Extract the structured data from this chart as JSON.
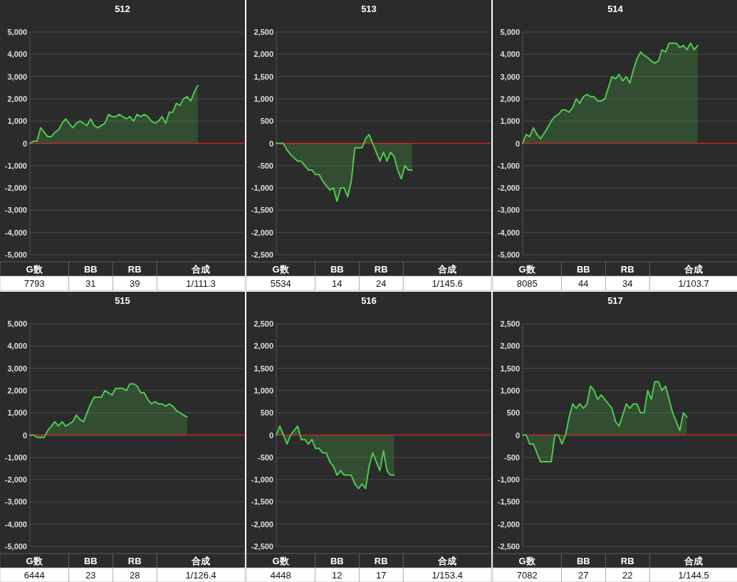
{
  "chart_data": [
    {
      "type": "area",
      "title": "512",
      "color": "#4fc94f",
      "grid": "y",
      "ylim": [
        -5000,
        5000
      ],
      "yticks": [
        {
          "value": -5000,
          "label": "-5,000"
        },
        {
          "value": -4000,
          "label": "-4,000"
        },
        {
          "value": -3000,
          "label": "-3,000"
        },
        {
          "value": -2000,
          "label": "-2,000"
        },
        {
          "value": -1000,
          "label": "-1,000"
        },
        0,
        {
          "value": 1000,
          "label": "1,000"
        },
        {
          "value": 2000,
          "label": "2,000"
        },
        {
          "value": 3000,
          "label": "3,000"
        },
        {
          "value": 4000,
          "label": "4,000"
        },
        {
          "value": 5000,
          "label": "5,000"
        }
      ],
      "categories": [
        null,
        null,
        null,
        null,
        null,
        null,
        null,
        null,
        null,
        null,
        null,
        null,
        null,
        null,
        null,
        null,
        null,
        null,
        null,
        null,
        null,
        null,
        null,
        null,
        null,
        null,
        null,
        null,
        null,
        null,
        null,
        null,
        null,
        null,
        null,
        null,
        null,
        null,
        null,
        null,
        null,
        null,
        null,
        null,
        null,
        null,
        null,
        null,
        null,
        null,
        null,
        null,
        null,
        null,
        null,
        null,
        null,
        null,
        null,
        null,
        null
      ],
      "values": [
        0,
        100,
        100,
        700,
        500,
        300,
        300,
        500,
        600,
        900,
        1100,
        900,
        700,
        900,
        1000,
        900,
        800,
        1100,
        800,
        700,
        800,
        900,
        1300,
        1200,
        1200,
        1300,
        1200,
        1100,
        1200,
        1000,
        1300,
        1200,
        1300,
        1200,
        1000,
        900,
        1000,
        1200,
        900,
        1400,
        1400,
        1800,
        1700,
        2000,
        2100,
        1900,
        2300,
        2600,
        null,
        null,
        null,
        null,
        null,
        null,
        null,
        null,
        null,
        null,
        null,
        null,
        null
      ],
      "ref_lines": [
        {
          "axis": "y",
          "value": 0,
          "color": "#c62828"
        }
      ],
      "annotations": [
        "G数",
        "BB",
        "RB",
        "合成",
        "7793",
        "31",
        "39",
        "1/111.3"
      ]
    },
    {
      "type": "area",
      "title": "513",
      "color": "#4fc94f",
      "grid": "y",
      "ylim": [
        -2500,
        2500
      ],
      "yticks": [
        {
          "value": -2500,
          "label": "-2,500"
        },
        {
          "value": -2000,
          "label": "-2,000"
        },
        {
          "value": -1500,
          "label": "-1,500"
        },
        {
          "value": -1000,
          "label": "-1,000"
        },
        -500,
        0,
        500,
        {
          "value": 1000,
          "label": "1,000"
        },
        {
          "value": 1500,
          "label": "1,500"
        },
        {
          "value": 2000,
          "label": "2,000"
        },
        {
          "value": 2500,
          "label": "2,500"
        }
      ],
      "categories": [
        null,
        null,
        null,
        null,
        null,
        null,
        null,
        null,
        null,
        null,
        null,
        null,
        null,
        null,
        null,
        null,
        null,
        null,
        null,
        null,
        null,
        null,
        null,
        null,
        null,
        null,
        null,
        null,
        null,
        null,
        null,
        null,
        null,
        null,
        null,
        null,
        null,
        null,
        null,
        null,
        null,
        null,
        null,
        null,
        null,
        null,
        null,
        null,
        null,
        null,
        null,
        null,
        null,
        null,
        null,
        null,
        null,
        null,
        null,
        null,
        null
      ],
      "values": [
        0,
        0,
        0,
        -150,
        -250,
        -330,
        -400,
        -400,
        -500,
        -600,
        -600,
        -700,
        -700,
        -850,
        -950,
        -1050,
        -1000,
        -1300,
        -1000,
        -1000,
        -1200,
        -850,
        -100,
        -100,
        -100,
        100,
        200,
        0,
        -200,
        -400,
        -200,
        -400,
        -200,
        -300,
        -600,
        -800,
        -500,
        -600,
        -600,
        null,
        null,
        null,
        null,
        null,
        null,
        null,
        null,
        null,
        null,
        null,
        null,
        null,
        null,
        null,
        null,
        null,
        null,
        null,
        null,
        null,
        null
      ],
      "ref_lines": [
        {
          "axis": "y",
          "value": 0,
          "color": "#c62828"
        }
      ],
      "annotations": [
        "G数",
        "BB",
        "RB",
        "合成",
        "5534",
        "14",
        "24",
        "1/145.6"
      ]
    },
    {
      "type": "area",
      "title": "514",
      "color": "#4fc94f",
      "grid": "y",
      "ylim": [
        -5000,
        5000
      ],
      "yticks": [
        {
          "value": -5000,
          "label": "-5,000"
        },
        {
          "value": -4000,
          "label": "-4,000"
        },
        {
          "value": -3000,
          "label": "-3,000"
        },
        {
          "value": -2000,
          "label": "-2,000"
        },
        {
          "value": -1000,
          "label": "-1,000"
        },
        0,
        {
          "value": 1000,
          "label": "1,000"
        },
        {
          "value": 2000,
          "label": "2,000"
        },
        {
          "value": 3000,
          "label": "3,000"
        },
        {
          "value": 4000,
          "label": "4,000"
        },
        {
          "value": 5000,
          "label": "5,000"
        }
      ],
      "categories": [
        null,
        null,
        null,
        null,
        null,
        null,
        null,
        null,
        null,
        null,
        null,
        null,
        null,
        null,
        null,
        null,
        null,
        null,
        null,
        null,
        null,
        null,
        null,
        null,
        null,
        null,
        null,
        null,
        null,
        null,
        null,
        null,
        null,
        null,
        null,
        null,
        null,
        null,
        null,
        null,
        null,
        null,
        null,
        null,
        null,
        null,
        null,
        null,
        null,
        null,
        null,
        null,
        null,
        null,
        null,
        null,
        null,
        null,
        null,
        null,
        null
      ],
      "values": [
        0,
        400,
        300,
        700,
        400,
        200,
        450,
        700,
        1000,
        1200,
        1300,
        1500,
        1500,
        1400,
        1600,
        2000,
        1800,
        2100,
        2200,
        2100,
        2100,
        1900,
        1900,
        2000,
        2500,
        3000,
        2900,
        3100,
        2800,
        3000,
        2700,
        3300,
        3800,
        4100,
        3950,
        3850,
        3700,
        3600,
        3700,
        4200,
        4100,
        4500,
        4500,
        4500,
        4300,
        4400,
        4200,
        4500,
        4200,
        4400,
        null,
        null,
        null,
        null,
        null,
        null,
        null,
        null,
        null,
        null,
        null
      ],
      "ref_lines": [
        {
          "axis": "y",
          "value": 0,
          "color": "#c62828"
        }
      ],
      "annotations": [
        "G数",
        "BB",
        "RB",
        "合成",
        "8085",
        "44",
        "34",
        "1/103.7"
      ]
    },
    {
      "type": "area",
      "title": "515",
      "color": "#4fc94f",
      "grid": "y",
      "ylim": [
        -5000,
        5000
      ],
      "yticks": [
        {
          "value": -5000,
          "label": "-5,000"
        },
        {
          "value": -4000,
          "label": "-4,000"
        },
        {
          "value": -3000,
          "label": "-3,000"
        },
        {
          "value": -2000,
          "label": "-2,000"
        },
        {
          "value": -1000,
          "label": "-1,000"
        },
        0,
        {
          "value": 1000,
          "label": "1,000"
        },
        {
          "value": 2000,
          "label": "2,000"
        },
        {
          "value": 3000,
          "label": "3,000"
        },
        {
          "value": 4000,
          "label": "4,000"
        },
        {
          "value": 5000,
          "label": "5,000"
        }
      ],
      "categories": [
        null,
        null,
        null,
        null,
        null,
        null,
        null,
        null,
        null,
        null,
        null,
        null,
        null,
        null,
        null,
        null,
        null,
        null,
        null,
        null,
        null,
        null,
        null,
        null,
        null,
        null,
        null,
        null,
        null,
        null,
        null,
        null,
        null,
        null,
        null,
        null,
        null,
        null,
        null,
        null,
        null,
        null,
        null,
        null,
        null,
        null,
        null,
        null,
        null,
        null,
        null,
        null,
        null,
        null,
        null,
        null,
        null,
        null,
        null,
        null,
        null
      ],
      "values": [
        0,
        0,
        -100,
        -100,
        -100,
        200,
        400,
        600,
        400,
        600,
        400,
        500,
        600,
        900,
        700,
        600,
        1000,
        1400,
        1700,
        1700,
        1700,
        2000,
        1900,
        1800,
        2100,
        2100,
        2100,
        2000,
        2300,
        2300,
        2200,
        1900,
        1900,
        1600,
        1400,
        1500,
        1400,
        1400,
        1300,
        1400,
        1300,
        1100,
        1000,
        900,
        800,
        null,
        null,
        null,
        null,
        null,
        null,
        null,
        null,
        null,
        null,
        null,
        null,
        null,
        null,
        null,
        null
      ],
      "ref_lines": [
        {
          "axis": "y",
          "value": 0,
          "color": "#c62828"
        }
      ],
      "annotations": [
        "G数",
        "BB",
        "RB",
        "合成",
        "6444",
        "23",
        "28",
        "1/126.4"
      ]
    },
    {
      "type": "area",
      "title": "516",
      "color": "#4fc94f",
      "grid": "y",
      "ylim": [
        -2500,
        2500
      ],
      "yticks": [
        {
          "value": -2500,
          "label": "-2,500"
        },
        {
          "value": -2000,
          "label": "-2,000"
        },
        {
          "value": -1500,
          "label": "-1,500"
        },
        {
          "value": -1000,
          "label": "-1,000"
        },
        -500,
        0,
        500,
        {
          "value": 1000,
          "label": "1,000"
        },
        {
          "value": 1500,
          "label": "1,500"
        },
        {
          "value": 2000,
          "label": "2,000"
        },
        {
          "value": 2500,
          "label": "2,500"
        }
      ],
      "categories": [
        null,
        null,
        null,
        null,
        null,
        null,
        null,
        null,
        null,
        null,
        null,
        null,
        null,
        null,
        null,
        null,
        null,
        null,
        null,
        null,
        null,
        null,
        null,
        null,
        null,
        null,
        null,
        null,
        null,
        null,
        null,
        null,
        null,
        null,
        null,
        null,
        null,
        null,
        null,
        null,
        null,
        null,
        null,
        null,
        null,
        null,
        null,
        null,
        null,
        null,
        null,
        null,
        null,
        null,
        null,
        null,
        null,
        null,
        null,
        null,
        null
      ],
      "values": [
        0,
        200,
        0,
        -200,
        0,
        100,
        200,
        -100,
        -100,
        -200,
        -100,
        -300,
        -300,
        -400,
        -400,
        -600,
        -700,
        -900,
        -800,
        -900,
        -900,
        -900,
        -1100,
        -1200,
        -1100,
        -1200,
        -700,
        -400,
        -600,
        -800,
        -350,
        -800,
        -900,
        -900,
        null,
        null,
        null,
        null,
        null,
        null,
        null,
        null,
        null,
        null,
        null,
        null,
        null,
        null,
        null,
        null,
        null,
        null,
        null,
        null,
        null,
        null,
        null,
        null,
        null,
        null,
        null
      ],
      "ref_lines": [
        {
          "axis": "y",
          "value": 0,
          "color": "#c62828"
        }
      ],
      "annotations": [
        "G数",
        "BB",
        "RB",
        "合成",
        "4448",
        "12",
        "17",
        "1/153.4"
      ]
    },
    {
      "type": "area",
      "title": "517",
      "color": "#4fc94f",
      "grid": "y",
      "ylim": [
        -2500,
        2500
      ],
      "yticks": [
        {
          "value": -2500,
          "label": "-2,500"
        },
        {
          "value": -2000,
          "label": "-2,000"
        },
        {
          "value": -1500,
          "label": "-1,500"
        },
        {
          "value": -1000,
          "label": "-1,000"
        },
        -500,
        0,
        500,
        {
          "value": 1000,
          "label": "1,000"
        },
        {
          "value": 1500,
          "label": "1,500"
        },
        {
          "value": 2000,
          "label": "2,000"
        },
        {
          "value": 2500,
          "label": "2,500"
        }
      ],
      "categories": [
        null,
        null,
        null,
        null,
        null,
        null,
        null,
        null,
        null,
        null,
        null,
        null,
        null,
        null,
        null,
        null,
        null,
        null,
        null,
        null,
        null,
        null,
        null,
        null,
        null,
        null,
        null,
        null,
        null,
        null,
        null,
        null,
        null,
        null,
        null,
        null,
        null,
        null,
        null,
        null,
        null,
        null,
        null,
        null,
        null,
        null,
        null,
        null,
        null,
        null,
        null,
        null,
        null,
        null,
        null,
        null,
        null,
        null,
        null,
        null,
        null
      ],
      "values": [
        0,
        0,
        -200,
        -200,
        -400,
        -600,
        -600,
        -600,
        -600,
        0,
        0,
        -200,
        0,
        400,
        700,
        600,
        700,
        600,
        700,
        1100,
        1000,
        800,
        900,
        800,
        700,
        600,
        300,
        200,
        450,
        700,
        600,
        700,
        700,
        500,
        500,
        1000,
        800,
        1200,
        1200,
        1000,
        1100,
        800,
        500,
        300,
        100,
        500,
        400,
        null,
        null,
        null,
        null,
        null,
        null,
        null,
        null,
        null,
        null,
        null,
        null,
        null,
        null
      ],
      "ref_lines": [
        {
          "axis": "y",
          "value": 0,
          "color": "#c62828"
        }
      ],
      "annotations": [
        "G数",
        "BB",
        "RB",
        "合成",
        "7082",
        "27",
        "22",
        "1/144.5"
      ]
    }
  ]
}
